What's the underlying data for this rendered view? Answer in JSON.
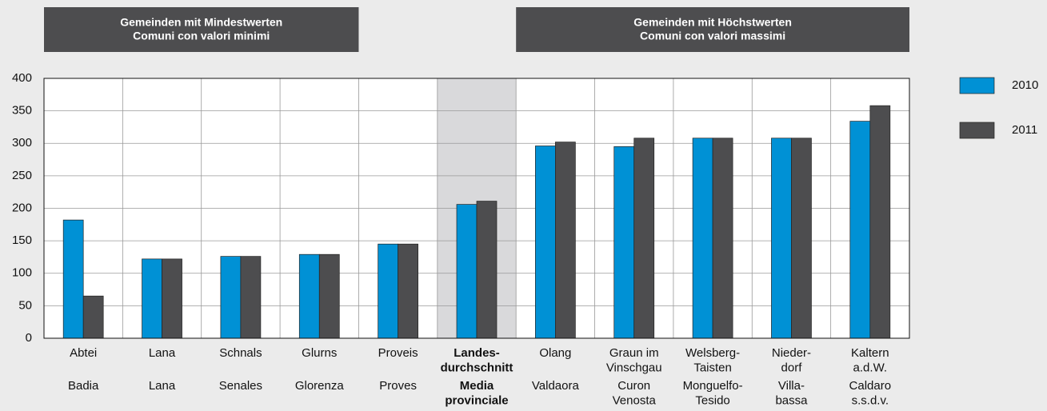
{
  "chart_data": {
    "type": "bar",
    "headers": [
      [
        "Gemeinden mit Mindestwerten",
        "Comuni con valori minimi"
      ],
      [
        "Gemeinden mit Höchstwerten",
        "Comuni con valori massimi"
      ]
    ],
    "categories": [
      {
        "de": [
          "Abtei"
        ],
        "it": [
          "Badia"
        ]
      },
      {
        "de": [
          "Lana"
        ],
        "it": [
          "Lana"
        ]
      },
      {
        "de": [
          "Schnals"
        ],
        "it": [
          "Senales"
        ]
      },
      {
        "de": [
          "Glurns"
        ],
        "it": [
          "Glorenza"
        ]
      },
      {
        "de": [
          "Proveis"
        ],
        "it": [
          "Proves"
        ]
      },
      {
        "de": [
          "Landes-",
          "durchschnitt"
        ],
        "it": [
          "Media",
          "provinciale"
        ]
      },
      {
        "de": [
          "Olang"
        ],
        "it": [
          "Valdaora"
        ]
      },
      {
        "de": [
          "Graun im",
          "Vinschgau"
        ],
        "it": [
          "Curon",
          "Venosta"
        ]
      },
      {
        "de": [
          "Welsberg-",
          "Taisten"
        ],
        "it": [
          "Monguelfo-",
          "Tesido"
        ]
      },
      {
        "de": [
          "Nieder-",
          "dorf"
        ],
        "it": [
          "Villa-",
          "bassa"
        ]
      },
      {
        "de": [
          "Kaltern",
          "a.d.W."
        ],
        "it": [
          "Caldaro",
          "s.s.d.v."
        ]
      }
    ],
    "series": [
      {
        "name": "2010",
        "color": "#0091d5",
        "values": [
          182,
          122,
          126,
          129,
          145,
          206,
          296,
          295,
          308,
          308,
          334
        ]
      },
      {
        "name": "2011",
        "color": "#4d4d4f",
        "values": [
          65,
          122,
          126,
          129,
          145,
          211,
          302,
          308,
          308,
          308,
          358
        ]
      }
    ],
    "ylim": [
      0,
      400
    ],
    "yticks": [
      0,
      50,
      100,
      150,
      200,
      250,
      300,
      350,
      400
    ],
    "grid": true,
    "highlight_index": 5,
    "highlight_color": "#d9d9db"
  }
}
